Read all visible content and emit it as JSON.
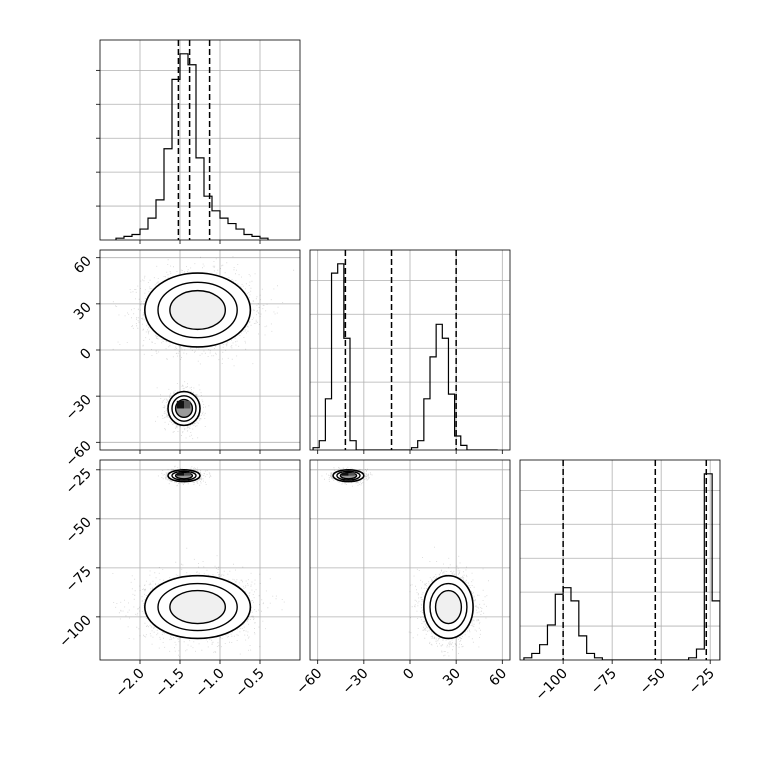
{
  "chart_data": {
    "type": "corner",
    "title": "",
    "grid": true,
    "params": [
      {
        "range": [
          -2.5,
          0.0
        ],
        "ticks": [
          -2.0,
          -1.5,
          -1.0,
          -0.5
        ],
        "tick_labels": [
          "−2.0",
          "−1.5",
          "−1.0",
          "−0.5"
        ]
      },
      {
        "range": [
          -65,
          65
        ],
        "ticks": [
          -60,
          -30,
          0,
          30,
          60
        ],
        "tick_labels": [
          "−60",
          "−30",
          "0",
          "30",
          "60"
        ]
      },
      {
        "range": [
          -122,
          -20
        ],
        "ticks": [
          -100,
          -75,
          -50,
          -25
        ],
        "tick_labels": [
          "−100",
          "−75",
          "−50",
          "−25"
        ]
      }
    ],
    "histograms": [
      {
        "param": 0,
        "bin_edges": [
          -2.3,
          -2.2,
          -2.1,
          -2.0,
          -1.9,
          -1.8,
          -1.7,
          -1.6,
          -1.5,
          -1.4,
          -1.3,
          -1.2,
          -1.1,
          -1.0,
          -0.9,
          -0.8,
          -0.7,
          -0.6,
          -0.5,
          -0.4
        ],
        "counts": [
          1,
          2,
          3,
          6,
          12,
          22,
          50,
          88,
          102,
          96,
          45,
          24,
          16,
          12,
          9,
          6,
          3,
          2,
          1
        ],
        "quantiles": [
          -1.52,
          -1.38,
          -1.13
        ]
      },
      {
        "param": 1,
        "bin_edges": [
          -63,
          -59,
          -55,
          -51,
          -47,
          -43,
          -39,
          -35,
          -31,
          -27,
          -23,
          -19,
          -15,
          -11,
          -7,
          -3,
          1,
          5,
          9,
          13,
          17,
          21,
          25,
          29,
          33,
          37,
          41,
          45,
          49,
          53,
          57
        ],
        "counts": [
          1,
          4,
          22,
          76,
          80,
          48,
          4,
          0,
          0,
          0,
          0,
          0,
          0,
          0,
          0,
          0,
          1,
          4,
          22,
          40,
          54,
          48,
          24,
          6,
          2,
          0,
          0,
          0,
          0,
          0
        ],
        "quantiles": [
          -42,
          -12,
          30
        ]
      },
      {
        "param": 2,
        "bin_edges": [
          -120,
          -116,
          -112,
          -108,
          -104,
          -100,
          -96,
          -92,
          -88,
          -84,
          -80,
          -76,
          -72,
          -68,
          -64,
          -60,
          -56,
          -52,
          -48,
          -44,
          -40,
          -36,
          -32,
          -28,
          -24,
          -20
        ],
        "counts": [
          1,
          3,
          7,
          16,
          30,
          33,
          27,
          11,
          3,
          1,
          0,
          0,
          0,
          0,
          0,
          0,
          0,
          0,
          0,
          0,
          0,
          1,
          5,
          85,
          27
        ],
        "quantiles": [
          -100,
          -53,
          -27
        ]
      }
    ],
    "scatter_panels": [
      {
        "x_param": 0,
        "y_param": 1,
        "clusters": [
          {
            "cx": -1.28,
            "cy": 26,
            "sx": 0.33,
            "sy": 12,
            "n": 2600
          },
          {
            "cx": -1.45,
            "cy": -38,
            "sx": 0.1,
            "sy": 5.5,
            "n": 1100
          }
        ]
      },
      {
        "x_param": 0,
        "y_param": 2,
        "clusters": [
          {
            "cx": -1.28,
            "cy": -95,
            "sx": 0.33,
            "sy": 8,
            "n": 2600
          },
          {
            "cx": -1.45,
            "cy": -28,
            "sx": 0.1,
            "sy": 1.5,
            "n": 1100
          }
        ]
      },
      {
        "x_param": 1,
        "y_param": 2,
        "clusters": [
          {
            "cx": 25,
            "cy": -95,
            "sx": 8,
            "sy": 8,
            "n": 2600
          },
          {
            "cx": -40,
            "cy": -28,
            "sx": 5,
            "sy": 1.5,
            "n": 1100
          }
        ]
      }
    ]
  }
}
